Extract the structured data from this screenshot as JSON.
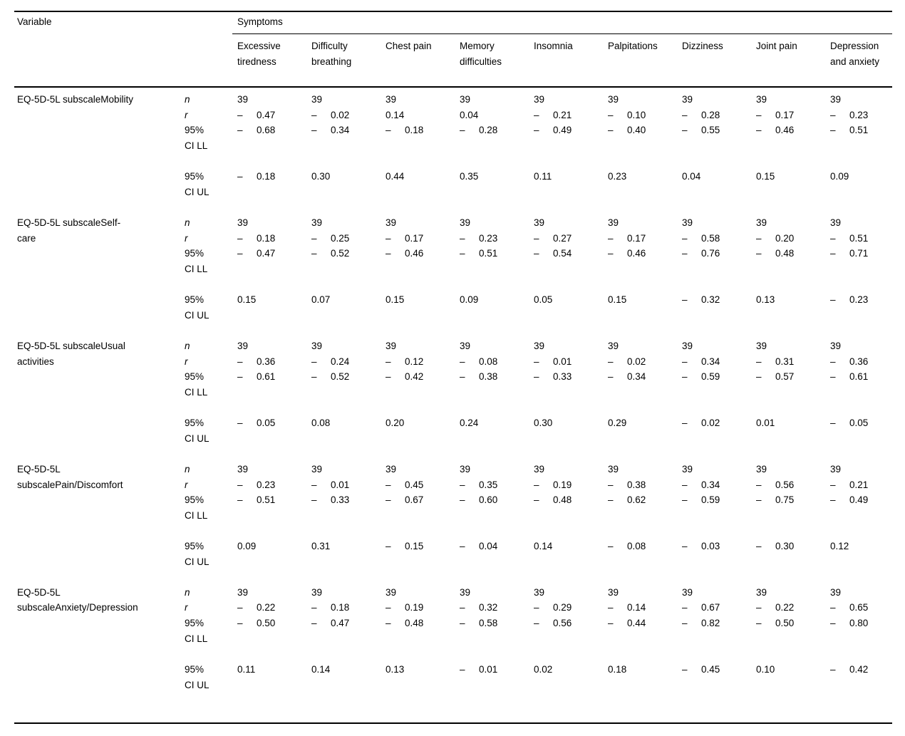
{
  "table": {
    "variable_header": "Variable",
    "span_header": "Symptoms",
    "symptom_columns": [
      "Excessive tiredness",
      "Difficulty breathing",
      "Chest pain",
      "Memory difficulties",
      "Insomnia",
      "Palpitations",
      "Dizziness",
      "Joint pain",
      "Depression and anxiety"
    ],
    "stat_labels": {
      "n": "n",
      "r": "r",
      "ci_ll": "95% CI LL",
      "ci_ul": "95% CI UL"
    },
    "minus_glyph": "–",
    "groups": [
      {
        "variable": "EQ-5D-5L subscaleMobility",
        "n": [
          39,
          39,
          39,
          39,
          39,
          39,
          39,
          39,
          39
        ],
        "r": [
          -0.47,
          -0.02,
          0.14,
          0.04,
          -0.21,
          -0.1,
          -0.28,
          -0.17,
          -0.23
        ],
        "ci_ll": [
          -0.68,
          -0.34,
          -0.18,
          -0.28,
          -0.49,
          -0.4,
          -0.55,
          -0.46,
          -0.51
        ],
        "ci_ul": [
          -0.18,
          0.3,
          0.44,
          0.35,
          0.11,
          0.23,
          0.04,
          0.15,
          0.09
        ]
      },
      {
        "variable": "EQ-5D-5L subscaleSelf-care",
        "n": [
          39,
          39,
          39,
          39,
          39,
          39,
          39,
          39,
          39
        ],
        "r": [
          -0.18,
          -0.25,
          -0.17,
          -0.23,
          -0.27,
          -0.17,
          -0.58,
          -0.2,
          -0.51
        ],
        "ci_ll": [
          -0.47,
          -0.52,
          -0.46,
          -0.51,
          -0.54,
          -0.46,
          -0.76,
          -0.48,
          -0.71
        ],
        "ci_ul": [
          0.15,
          0.07,
          0.15,
          0.09,
          0.05,
          0.15,
          -0.32,
          0.13,
          -0.23
        ]
      },
      {
        "variable": "EQ-5D-5L subscaleUsual activities",
        "n": [
          39,
          39,
          39,
          39,
          39,
          39,
          39,
          39,
          39
        ],
        "r": [
          -0.36,
          -0.24,
          -0.12,
          -0.08,
          -0.01,
          -0.02,
          -0.34,
          -0.31,
          -0.36
        ],
        "ci_ll": [
          -0.61,
          -0.52,
          -0.42,
          -0.38,
          -0.33,
          -0.34,
          -0.59,
          -0.57,
          -0.61
        ],
        "ci_ul": [
          -0.05,
          0.08,
          0.2,
          0.24,
          0.3,
          0.29,
          -0.02,
          0.01,
          -0.05
        ]
      },
      {
        "variable": "EQ-5D-5L subscalePain/Discomfort",
        "n": [
          39,
          39,
          39,
          39,
          39,
          39,
          39,
          39,
          39
        ],
        "r": [
          -0.23,
          -0.01,
          -0.45,
          -0.35,
          -0.19,
          -0.38,
          -0.34,
          -0.56,
          -0.21
        ],
        "ci_ll": [
          -0.51,
          -0.33,
          -0.67,
          -0.6,
          -0.48,
          -0.62,
          -0.59,
          -0.75,
          -0.49
        ],
        "ci_ul": [
          0.09,
          0.31,
          -0.15,
          -0.04,
          0.14,
          -0.08,
          -0.03,
          -0.3,
          0.12
        ]
      },
      {
        "variable": "EQ-5D-5L subscaleAnxiety/Depression",
        "n": [
          39,
          39,
          39,
          39,
          39,
          39,
          39,
          39,
          39
        ],
        "r": [
          -0.22,
          -0.18,
          -0.19,
          -0.32,
          -0.29,
          -0.14,
          -0.67,
          -0.22,
          -0.65
        ],
        "ci_ll": [
          -0.5,
          -0.47,
          -0.48,
          -0.58,
          -0.56,
          -0.44,
          -0.82,
          -0.5,
          -0.8
        ],
        "ci_ul": [
          0.11,
          0.14,
          0.13,
          -0.01,
          0.02,
          0.18,
          -0.45,
          0.1,
          -0.42
        ]
      }
    ]
  },
  "colors": {
    "text": "#000000",
    "background": "#ffffff",
    "rule": "#000000"
  }
}
